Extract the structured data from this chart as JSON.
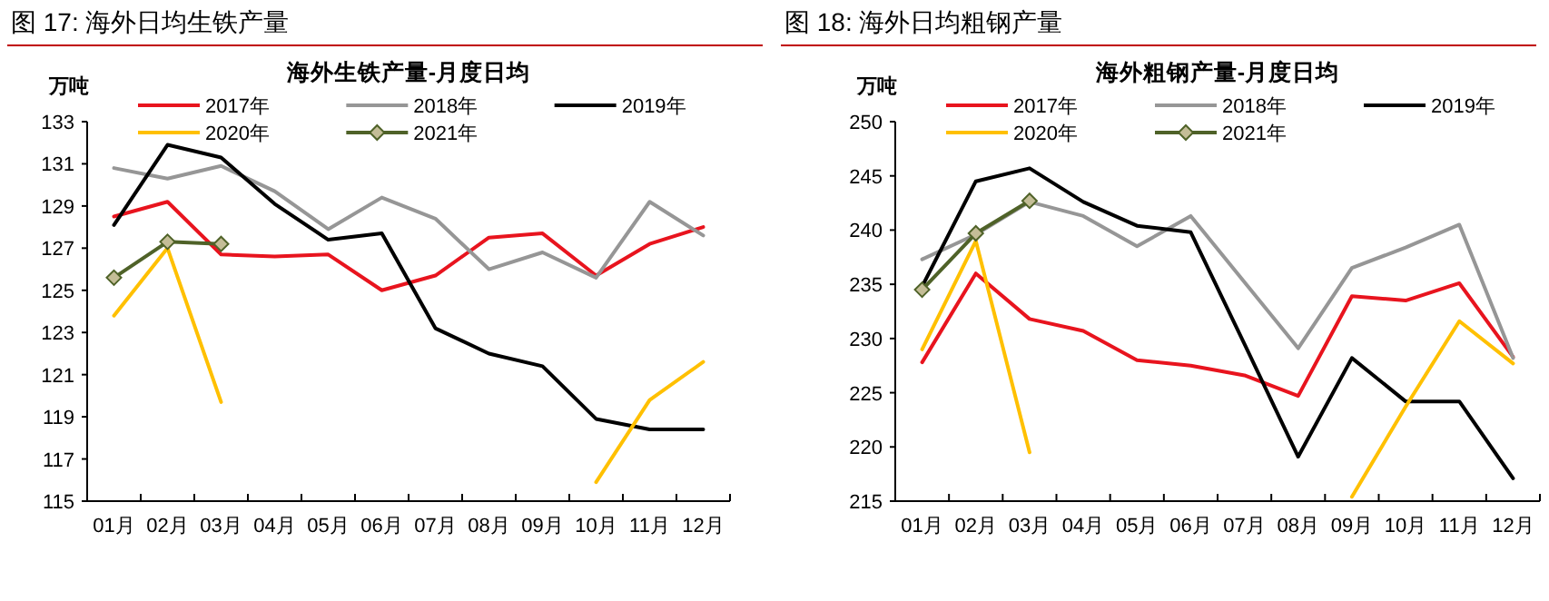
{
  "chart_data": [
    {
      "type": "line",
      "title": "海外生铁产量-月度日均",
      "ylabel": "万吨",
      "annotations": [
        "图 17:    海外日均生铁产量"
      ],
      "categories": [
        "01月",
        "02月",
        "03月",
        "04月",
        "05月",
        "06月",
        "07月",
        "08月",
        "09月",
        "10月",
        "11月",
        "12月"
      ],
      "ylim": [
        115,
        133
      ],
      "yticks": [
        115,
        117,
        119,
        121,
        123,
        125,
        127,
        129,
        131,
        133
      ],
      "grid": false,
      "legend": "top",
      "series": [
        {
          "name": "2017年",
          "color": "#e8141e",
          "values": [
            128.5,
            129.2,
            126.7,
            126.6,
            126.7,
            125.0,
            125.7,
            127.5,
            127.7,
            125.7,
            127.2,
            128.0
          ]
        },
        {
          "name": "2018年",
          "color": "#969696",
          "values": [
            130.8,
            130.3,
            130.9,
            129.7,
            127.9,
            129.4,
            128.4,
            126.0,
            126.8,
            125.6,
            129.2,
            127.6
          ]
        },
        {
          "name": "2019年",
          "color": "#000000",
          "values": [
            128.1,
            131.9,
            131.3,
            129.1,
            127.4,
            127.7,
            123.2,
            122.0,
            121.4,
            118.9,
            118.4,
            118.4
          ]
        },
        {
          "name": "2020年",
          "color": "#ffc000",
          "values": [
            123.8,
            127.0,
            119.7,
            null,
            null,
            null,
            null,
            null,
            null,
            115.9,
            119.8,
            121.6
          ]
        },
        {
          "name": "2021年",
          "color": "#4f6228",
          "marker": "diamond",
          "values": [
            125.6,
            127.3,
            127.2,
            null,
            null,
            null,
            null,
            null,
            null,
            null,
            null,
            null
          ]
        }
      ]
    },
    {
      "type": "line",
      "title": "海外粗钢产量-月度日均",
      "ylabel": "万吨",
      "annotations": [
        "图 18:    海外日均粗钢产量"
      ],
      "categories": [
        "01月",
        "02月",
        "03月",
        "04月",
        "05月",
        "06月",
        "07月",
        "08月",
        "09月",
        "10月",
        "11月",
        "12月"
      ],
      "ylim": [
        215,
        250
      ],
      "yticks": [
        215,
        220,
        225,
        230,
        235,
        240,
        245,
        250
      ],
      "grid": false,
      "legend": "top",
      "series": [
        {
          "name": "2017年",
          "color": "#e8141e",
          "values": [
            227.8,
            236.0,
            231.8,
            230.7,
            228.0,
            227.5,
            226.6,
            224.7,
            233.9,
            233.5,
            235.1,
            228.3
          ]
        },
        {
          "name": "2018年",
          "color": "#969696",
          "values": [
            237.3,
            239.6,
            242.6,
            241.3,
            238.5,
            241.3,
            235.2,
            229.1,
            236.5,
            238.4,
            240.5,
            228.2
          ]
        },
        {
          "name": "2019年",
          "color": "#000000",
          "values": [
            234.8,
            244.5,
            245.7,
            242.6,
            240.4,
            239.8,
            229.5,
            219.1,
            228.2,
            224.2,
            224.2,
            217.1
          ]
        },
        {
          "name": "2020年",
          "color": "#ffc000",
          "values": [
            229.0,
            239.0,
            219.5,
            null,
            null,
            null,
            null,
            null,
            215.4,
            223.7,
            231.6,
            227.7
          ]
        },
        {
          "name": "2021年",
          "color": "#4f6228",
          "marker": "diamond",
          "values": [
            234.5,
            239.7,
            242.7,
            null,
            null,
            null,
            null,
            null,
            null,
            null,
            null,
            null
          ]
        }
      ]
    }
  ]
}
